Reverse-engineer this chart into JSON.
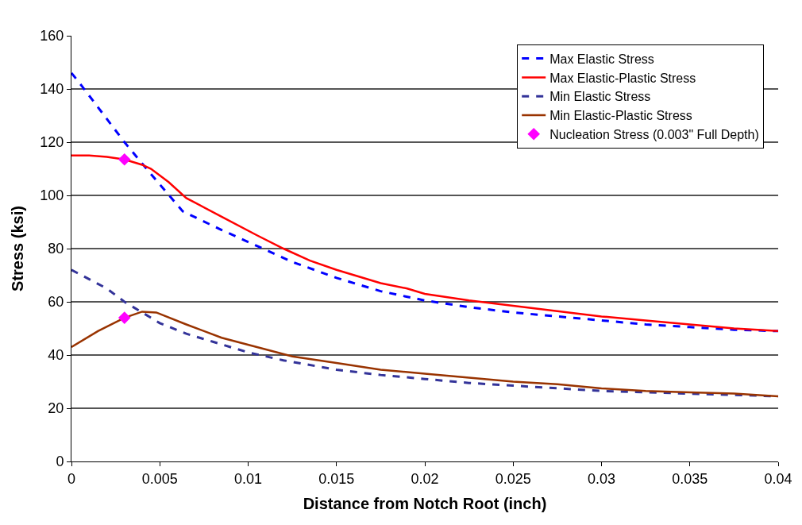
{
  "chart_data": {
    "type": "line",
    "xlabel": "Distance from Notch Root (inch)",
    "ylabel": "Stress (ksi)",
    "xlim": [
      0,
      0.04
    ],
    "xticks": [
      0,
      0.005,
      0.01,
      0.015,
      0.02,
      0.025,
      0.03,
      0.035,
      0.04
    ],
    "ylim": [
      0,
      160
    ],
    "yticks": [
      0,
      20,
      40,
      60,
      80,
      100,
      120,
      140,
      160
    ],
    "grid": "y",
    "legend": "top right",
    "marker": "none",
    "series": [
      {
        "name": "Max Elastic Stress",
        "color": "#0000ff",
        "line_style": "dashed",
        "x": [
          0,
          0.0006,
          0.003,
          0.0045,
          0.0063,
          0.0085,
          0.0105,
          0.0125,
          0.015,
          0.0175,
          0.02,
          0.0225,
          0.025,
          0.0275,
          0.03,
          0.0325,
          0.035,
          0.0375,
          0.04
        ],
        "values": [
          146,
          141,
          120,
          108,
          94,
          87,
          81,
          75,
          69,
          64,
          60.5,
          58,
          56,
          54.5,
          53,
          51.5,
          50.5,
          49.5,
          49
        ]
      },
      {
        "name": "Max Elastic-Plastic Stress",
        "color": "#ff0000",
        "line_style": "solid",
        "x": [
          0,
          0.001,
          0.002,
          0.003,
          0.004,
          0.0045,
          0.0055,
          0.0065,
          0.0085,
          0.0105,
          0.012,
          0.0135,
          0.015,
          0.0175,
          0.019,
          0.02,
          0.0225,
          0.025,
          0.0275,
          0.03,
          0.0325,
          0.035,
          0.0375,
          0.04
        ],
        "values": [
          115,
          115,
          114.5,
          113.5,
          111.5,
          110,
          105,
          99,
          92,
          85,
          80,
          75.5,
          72,
          67,
          65,
          63,
          60.5,
          58.5,
          56.5,
          54.5,
          53,
          51.5,
          50,
          49
        ]
      },
      {
        "name": "Min Elastic Stress",
        "color": "#333399",
        "line_style": "dashed",
        "x": [
          0,
          0.002,
          0.003,
          0.004,
          0.005,
          0.0065,
          0.008,
          0.01,
          0.012,
          0.015,
          0.0175,
          0.02,
          0.0225,
          0.025,
          0.0275,
          0.03,
          0.0325,
          0.035,
          0.0375,
          0.04
        ],
        "values": [
          72,
          65,
          60,
          56,
          52,
          48,
          45,
          41,
          38,
          34.5,
          32.5,
          31,
          29.5,
          28.5,
          27.5,
          26.5,
          26,
          25.5,
          25,
          24.5
        ]
      },
      {
        "name": "Min Elastic-Plastic Stress",
        "color": "#993300",
        "line_style": "solid",
        "x": [
          0,
          0.0015,
          0.003,
          0.004,
          0.0048,
          0.0065,
          0.0085,
          0.0105,
          0.0125,
          0.015,
          0.0175,
          0.02,
          0.0225,
          0.025,
          0.0275,
          0.03,
          0.0325,
          0.035,
          0.0375,
          0.04
        ],
        "values": [
          43,
          49,
          54,
          56.3,
          56,
          51.5,
          46.5,
          43,
          39.5,
          37,
          34.5,
          33,
          31.5,
          30,
          29,
          27.5,
          26.5,
          26,
          25.5,
          24.5
        ]
      },
      {
        "name": "Nucleation Stress (0.003\" Full Depth)",
        "color": "#ff00ff",
        "type": "scatter",
        "marker": "diamond",
        "x": [
          0.003,
          0.003
        ],
        "values": [
          113.5,
          54
        ]
      }
    ]
  }
}
